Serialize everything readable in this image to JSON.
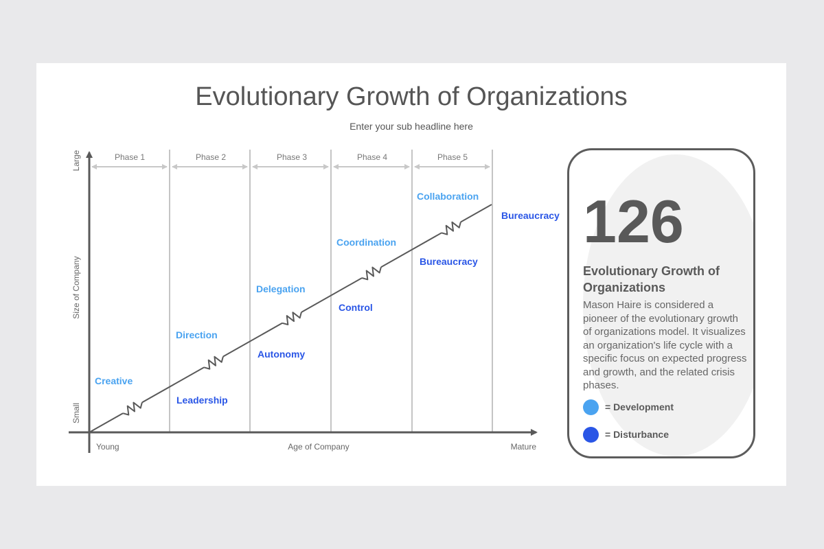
{
  "title": "Evolutionary Growth of Organizations",
  "subtitle": "Enter your sub headline here",
  "colors": {
    "development": "#4aa3f0",
    "disturbance": "#2a56e6",
    "axis": "#595959",
    "divider": "#c4c4c4",
    "phase_arrow": "#c8c8c8"
  },
  "diagram": {
    "y_axis": {
      "label": "Size of Company",
      "top": "Large",
      "bottom": "Small"
    },
    "x_axis": {
      "label": "Age of Company",
      "left": "Young",
      "right": "Mature"
    },
    "phases": [
      {
        "label": "Phase 1",
        "development": "Creative",
        "disturbance": "Leadership"
      },
      {
        "label": "Phase 2",
        "development": "Direction",
        "disturbance": "Autonomy"
      },
      {
        "label": "Phase 3",
        "development": "Delegation",
        "disturbance": "Control"
      },
      {
        "label": "Phase 4",
        "development": "Coordination",
        "disturbance": "Bureaucracy"
      },
      {
        "label": "Phase 5",
        "development": "Collaboration",
        "disturbance": "Bureaucracy"
      }
    ]
  },
  "card": {
    "number": "126",
    "heading": "Evolutionary Growth of Organizations",
    "body": "Mason Haire is considered a pioneer of the evolutionary growth of organizations model. It visualizes an organization's life cycle with a specific focus on expected progress and growth, and the related crisis phases.",
    "legend": [
      {
        "label": "= Development",
        "color": "#4aa3f0"
      },
      {
        "label": "= Disturbance",
        "color": "#2a56e6"
      }
    ]
  }
}
